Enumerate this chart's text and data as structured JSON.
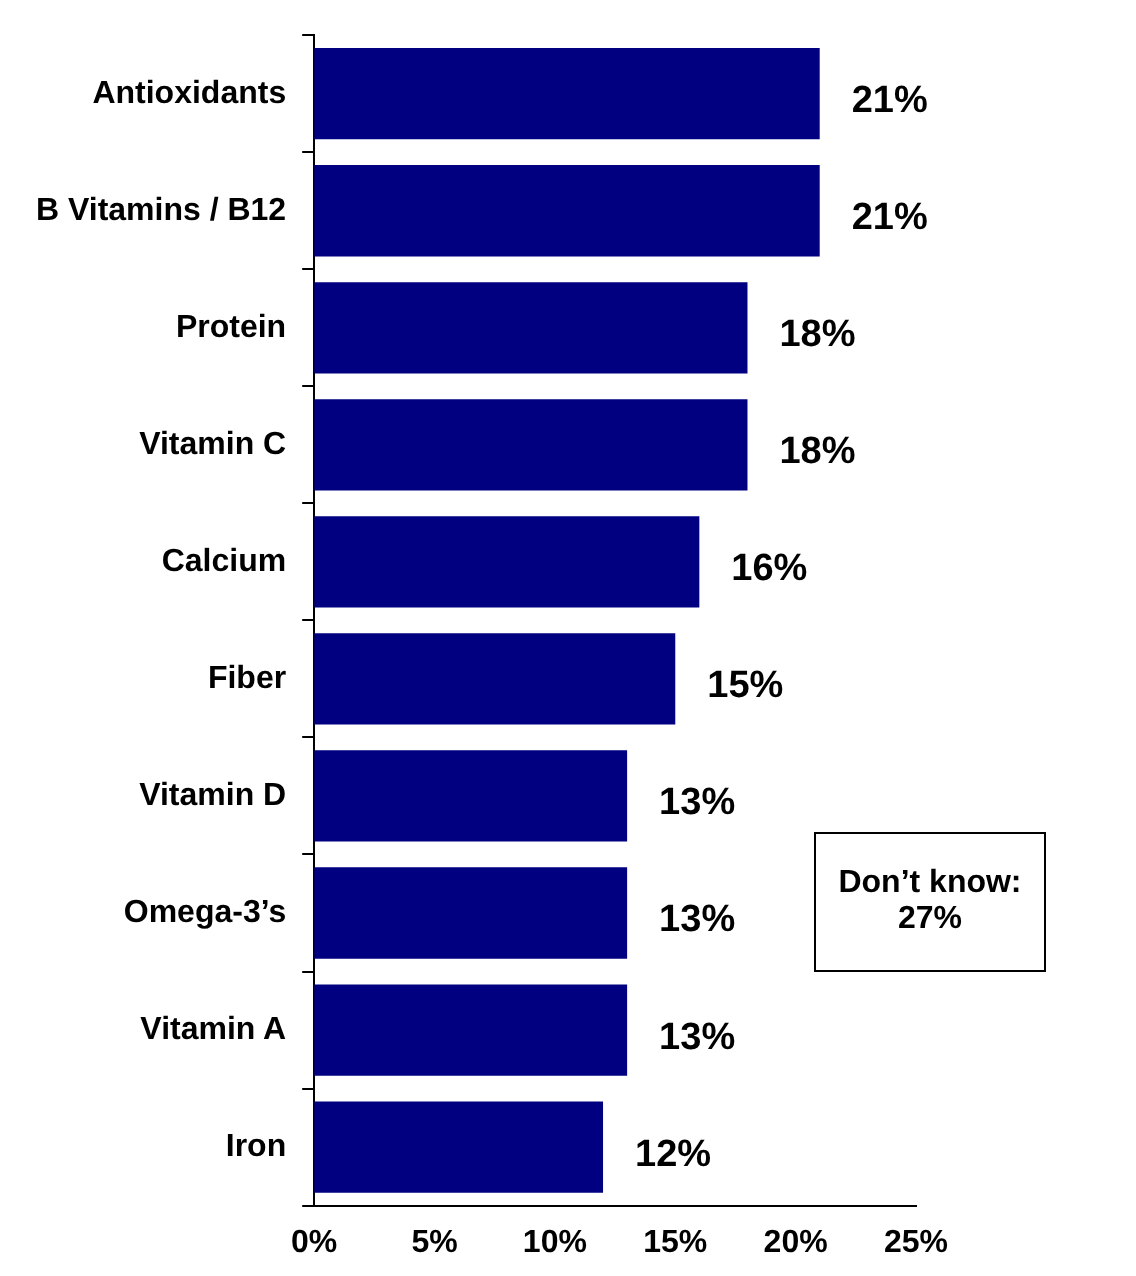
{
  "chart_data": {
    "type": "bar",
    "orientation": "horizontal",
    "categories": [
      "Antioxidants",
      "B Vitamins / B12",
      "Protein",
      "Vitamin C",
      "Calcium",
      "Fiber",
      "Vitamin D",
      "Omega-3’s",
      "Vitamin A",
      "Iron"
    ],
    "values": [
      21,
      21,
      18,
      18,
      16,
      15,
      13,
      13,
      13,
      12
    ],
    "value_labels": [
      "21%",
      "21%",
      "18%",
      "18%",
      "16%",
      "15%",
      "13%",
      "13%",
      "13%",
      "12%"
    ],
    "color": "#000080",
    "xlim": [
      0,
      25
    ],
    "xticks": [
      {
        "value": 0,
        "label": "0%"
      },
      {
        "value": 5,
        "label": "5%"
      },
      {
        "value": 10,
        "label": "10%"
      },
      {
        "value": 15,
        "label": "15%"
      },
      {
        "value": 20,
        "label": "20%"
      },
      {
        "value": 25,
        "label": "25%"
      }
    ],
    "grid": false,
    "legend": false,
    "annotations": [
      "Don’t know: 27%"
    ]
  }
}
